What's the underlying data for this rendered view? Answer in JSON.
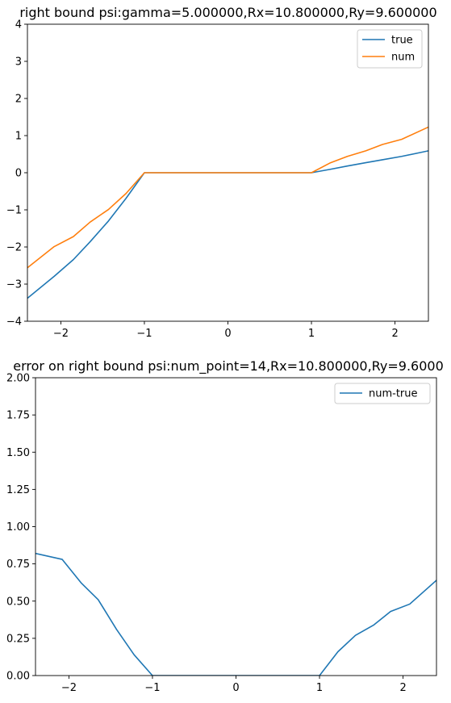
{
  "chart_data": [
    {
      "type": "line",
      "title": "right bound psi:gamma=5.000000,Rx=10.800000,Ry=9.600000",
      "xlabel": "",
      "ylabel": "",
      "xlim": [
        -2.4,
        2.4
      ],
      "ylim": [
        -4,
        4
      ],
      "xticks": [
        -2,
        -1,
        0,
        1,
        2
      ],
      "xtick_labels": [
        "−2",
        "−1",
        "0",
        "1",
        "2"
      ],
      "yticks": [
        -4,
        -3,
        -2,
        -1,
        0,
        1,
        2,
        3,
        4
      ],
      "ytick_labels": [
        "−4",
        "−3",
        "−2",
        "−1",
        "0",
        "1",
        "2",
        "3",
        "4"
      ],
      "grid": false,
      "legend": "top-right",
      "series": [
        {
          "name": "true",
          "color": "#1f77b4",
          "x": [
            -2.4,
            -2.08,
            -1.85,
            -1.65,
            -1.43,
            -1.22,
            -1.0,
            -0.8,
            0.8,
            1.0,
            1.22,
            1.43,
            1.65,
            1.85,
            2.08,
            2.4
          ],
          "y": [
            -3.38,
            -2.79,
            -2.34,
            -1.86,
            -1.3,
            -0.69,
            0.0,
            0.0,
            0.0,
            0.0,
            0.09,
            0.18,
            0.27,
            0.35,
            0.44,
            0.59
          ]
        },
        {
          "name": "num",
          "color": "#ff7f0e",
          "x": [
            -2.4,
            -2.08,
            -1.85,
            -1.65,
            -1.43,
            -1.22,
            -1.0,
            -0.8,
            0.8,
            1.0,
            1.22,
            1.43,
            1.65,
            1.85,
            2.08,
            2.4
          ],
          "y": [
            -2.56,
            -1.99,
            -1.72,
            -1.33,
            -0.99,
            -0.56,
            0.0,
            0.0,
            0.0,
            0.0,
            0.26,
            0.44,
            0.59,
            0.76,
            0.9,
            1.23
          ]
        }
      ]
    },
    {
      "type": "line",
      "title": "error on right bound psi:num_point=14,Rx=10.800000,Ry=9.6000",
      "xlabel": "",
      "ylabel": "",
      "xlim": [
        -2.4,
        2.4
      ],
      "ylim": [
        0,
        2
      ],
      "xticks": [
        -2,
        -1,
        0,
        1,
        2
      ],
      "xtick_labels": [
        "−2",
        "−1",
        "0",
        "1",
        "2"
      ],
      "yticks": [
        0,
        0.25,
        0.5,
        0.75,
        1.0,
        1.25,
        1.5,
        1.75,
        2.0
      ],
      "ytick_labels": [
        "0.00",
        "0.25",
        "0.50",
        "0.75",
        "1.00",
        "1.25",
        "1.50",
        "1.75",
        "2.00"
      ],
      "grid": false,
      "legend": "top-right",
      "series": [
        {
          "name": "num-true",
          "color": "#1f77b4",
          "x": [
            -2.4,
            -2.08,
            -1.85,
            -1.65,
            -1.43,
            -1.22,
            -1.0,
            1.0,
            1.22,
            1.43,
            1.65,
            1.85,
            2.08,
            2.4
          ],
          "y": [
            0.82,
            0.78,
            0.62,
            0.51,
            0.31,
            0.14,
            0.0,
            0.0,
            0.16,
            0.27,
            0.34,
            0.43,
            0.48,
            0.64
          ]
        }
      ]
    }
  ]
}
